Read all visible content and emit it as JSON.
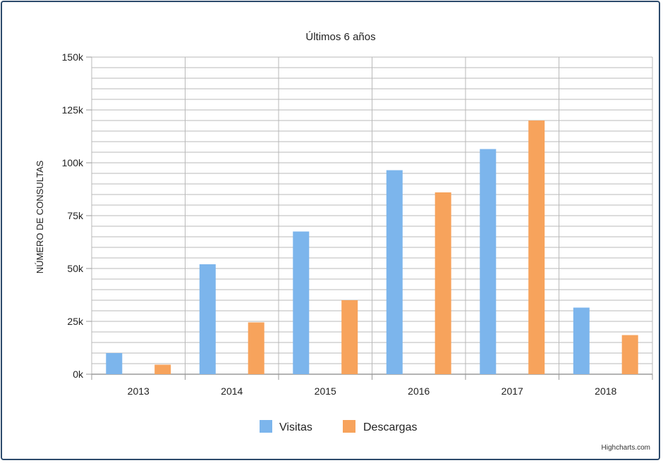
{
  "chart_data": {
    "type": "bar",
    "title": "Últimos 6 años",
    "ylabel": "NÚMERO DE CONSULTAS",
    "xlabel": "",
    "categories": [
      "2013",
      "2014",
      "2015",
      "2016",
      "2017",
      "2018"
    ],
    "series": [
      {
        "name": "Visitas",
        "color": "#7cb5ec",
        "values": [
          10000,
          52000,
          67500,
          96500,
          106500,
          31500
        ]
      },
      {
        "name": "Descargas",
        "color": "#f7a35c",
        "values": [
          4500,
          24500,
          35000,
          86000,
          120000,
          18500
        ]
      }
    ],
    "ylim": [
      0,
      150000
    ],
    "yticks": [
      0,
      25000,
      50000,
      75000,
      100000,
      125000,
      150000
    ],
    "ytick_labels": [
      "0k",
      "25k",
      "50k",
      "75k",
      "100k",
      "125k",
      "150k"
    ],
    "grid": true,
    "legend_position": "bottom-center"
  },
  "credits": "Highcharts.com"
}
